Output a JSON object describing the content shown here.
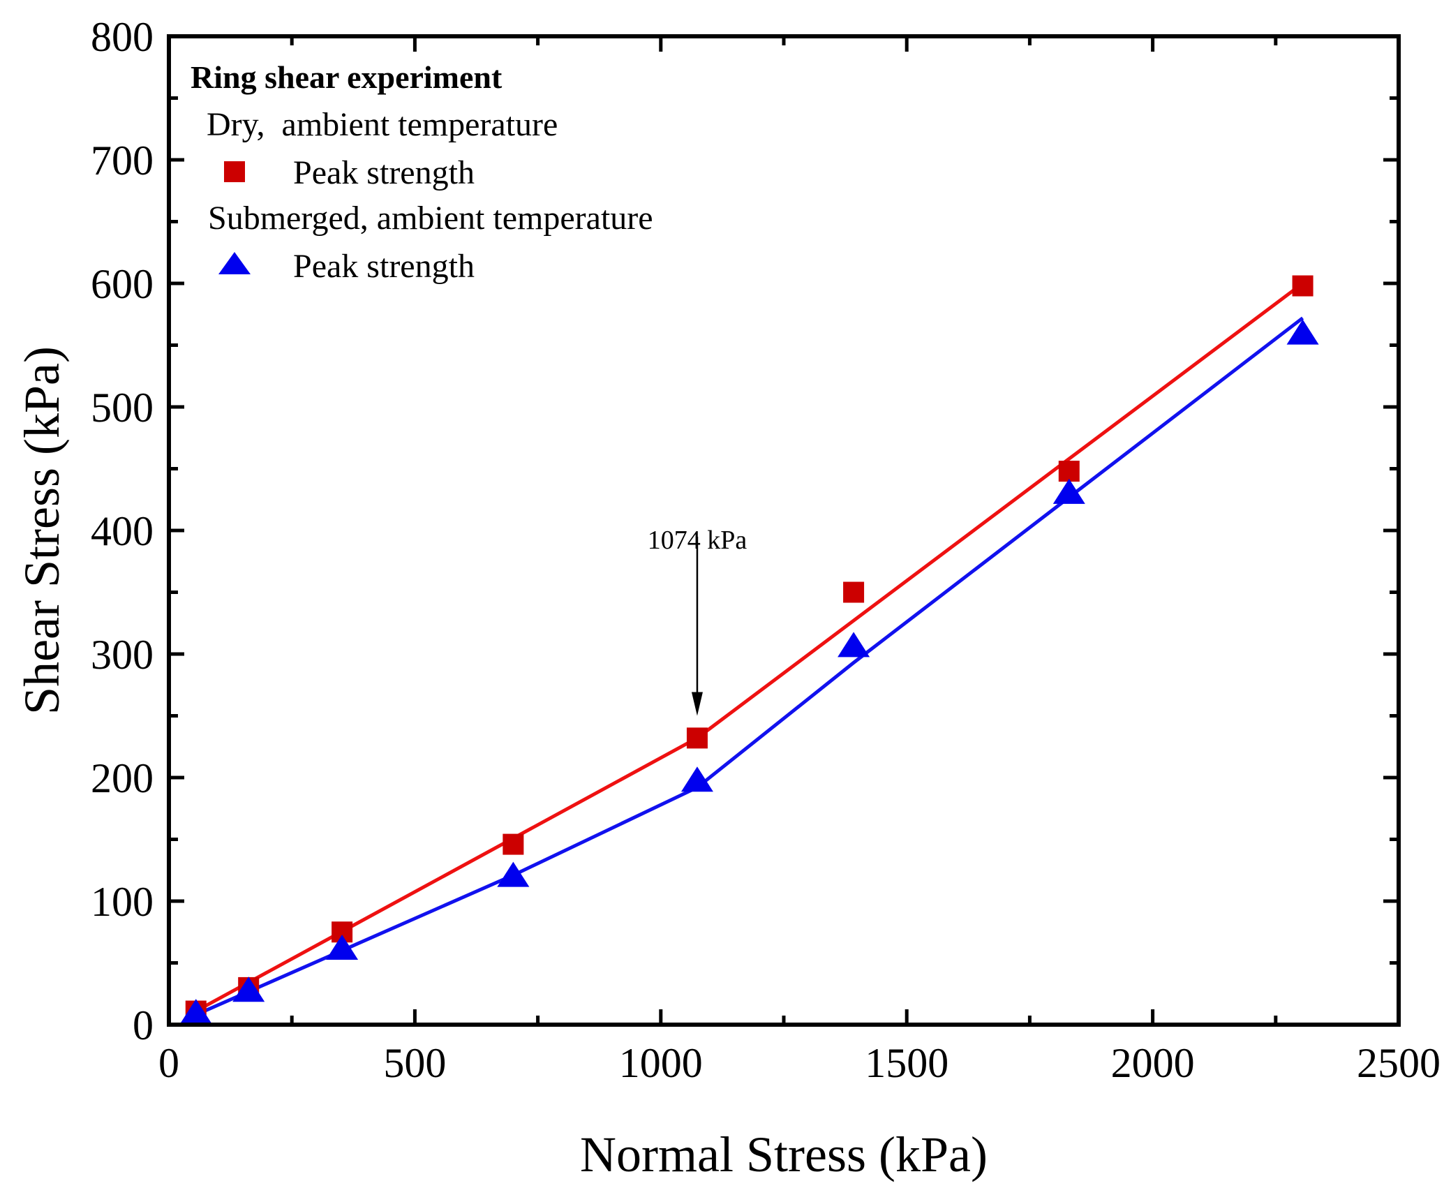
{
  "chart_data": {
    "type": "scatter",
    "xlabel": "Normal Stress (kPa)",
    "ylabel": "Shear Stress (kPa)",
    "xlim": [
      0,
      2500
    ],
    "ylim": [
      0,
      800
    ],
    "xticks": [
      0,
      500,
      1000,
      1500,
      2000,
      2500
    ],
    "yticks": [
      0,
      100,
      200,
      300,
      400,
      500,
      600,
      700,
      800
    ],
    "grid": false,
    "legend": {
      "placement": "top-left",
      "title": "Ring shear experiment",
      "groups": [
        {
          "heading": "Dry,  ambient temperature",
          "entry_label": "Peak strength",
          "marker": "square",
          "color": "#cc0000"
        },
        {
          "heading": "Submerged, ambient temperature",
          "entry_label": "Peak strength",
          "marker": "triangle",
          "color": "#0000ee"
        }
      ]
    },
    "series": [
      {
        "name": "Dry, ambient temperature - Peak strength",
        "marker": "square",
        "color": "#cc0000",
        "points": [
          [
            55,
            11
          ],
          [
            162,
            30
          ],
          [
            352,
            75
          ],
          [
            700,
            146
          ],
          [
            1074,
            232
          ],
          [
            1392,
            350
          ],
          [
            1830,
            448
          ],
          [
            2305,
            598
          ]
        ],
        "fit_line": [
          [
            55,
            11
          ],
          [
            1074,
            232
          ],
          [
            2305,
            600
          ]
        ],
        "line_color": "#ee1111"
      },
      {
        "name": "Submerged, ambient temperature - Peak strength",
        "marker": "triangle",
        "color": "#0000ee",
        "points": [
          [
            55,
            9
          ],
          [
            162,
            27
          ],
          [
            352,
            61
          ],
          [
            700,
            120
          ],
          [
            1074,
            197
          ],
          [
            1392,
            306
          ],
          [
            1830,
            430
          ],
          [
            2305,
            559
          ]
        ],
        "fit_line": [
          [
            55,
            8
          ],
          [
            352,
            60
          ],
          [
            700,
            121
          ],
          [
            1074,
            192
          ],
          [
            1392,
            293
          ],
          [
            2305,
            572
          ]
        ],
        "line_color": "#1111ee"
      }
    ],
    "annotations": [
      {
        "text": "1074 kPa",
        "x": 1074,
        "arrow_from_y": 395,
        "arrow_to_y": 250
      }
    ]
  }
}
